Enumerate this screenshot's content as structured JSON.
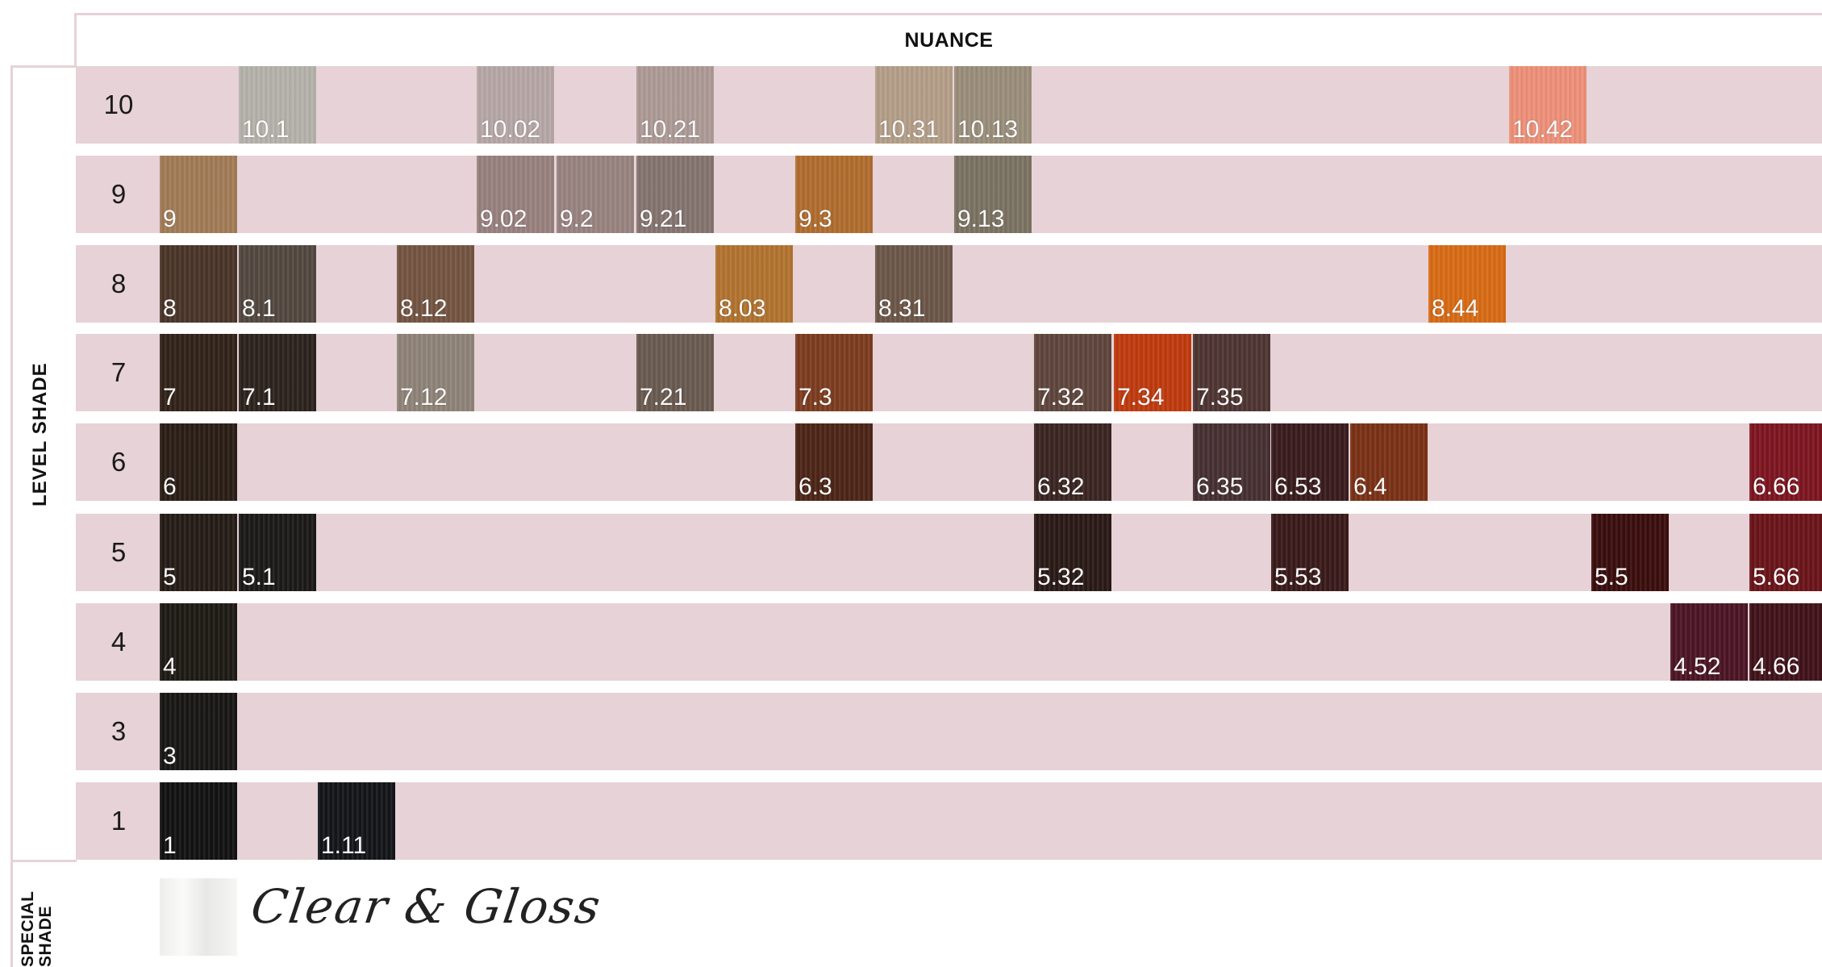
{
  "header": {
    "nuance_label": "NUANCE"
  },
  "axis": {
    "level_shade_label": "LEVEL SHADE",
    "special_shade_label_line1": "SPECIAL",
    "special_shade_label_line2": "SHADE"
  },
  "levels": [
    "10",
    "9",
    "8",
    "7",
    "6",
    "5",
    "4",
    "3",
    "1"
  ],
  "swatches": [
    {
      "label": "10.1",
      "row": 0,
      "col": 1,
      "color": "#b5b2ab"
    },
    {
      "label": "10.02",
      "row": 0,
      "col": 4,
      "color": "#b7a7a7"
    },
    {
      "label": "10.21",
      "row": 0,
      "col": 6,
      "color": "#ad9a97"
    },
    {
      "label": "10.31",
      "row": 0,
      "col": 9,
      "color": "#b49e88"
    },
    {
      "label": "10.13",
      "row": 0,
      "col": 10,
      "color": "#9a8e7b"
    },
    {
      "label": "10.42",
      "row": 0,
      "col": 17,
      "color": "#ee9079"
    },
    {
      "label": "9",
      "row": 1,
      "col": 0,
      "color": "#a27b56"
    },
    {
      "label": "9.02",
      "row": 1,
      "col": 4,
      "color": "#98817f"
    },
    {
      "label": "9.2",
      "row": 1,
      "col": 5,
      "color": "#988380"
    },
    {
      "label": "9.21",
      "row": 1,
      "col": 6,
      "color": "#857470"
    },
    {
      "label": "9.3",
      "row": 1,
      "col": 8,
      "color": "#b06d2e"
    },
    {
      "label": "9.13",
      "row": 1,
      "col": 10,
      "color": "#7b7262"
    },
    {
      "label": "8",
      "row": 2,
      "col": 0,
      "color": "#4a3428"
    },
    {
      "label": "8.1",
      "row": 2,
      "col": 1,
      "color": "#524840"
    },
    {
      "label": "8.12",
      "row": 2,
      "col": 3,
      "color": "#745442"
    },
    {
      "label": "8.03",
      "row": 2,
      "col": 7,
      "color": "#b2732f"
    },
    {
      "label": "8.31",
      "row": 2,
      "col": 9,
      "color": "#6c5749"
    },
    {
      "label": "8.44",
      "row": 2,
      "col": 16,
      "color": "#d86b15"
    },
    {
      "label": "7",
      "row": 3,
      "col": 0,
      "color": "#322219"
    },
    {
      "label": "7.1",
      "row": 3,
      "col": 1,
      "color": "#2c231e"
    },
    {
      "label": "7.12",
      "row": 3,
      "col": 3,
      "color": "#8f8378"
    },
    {
      "label": "7.21",
      "row": 3,
      "col": 6,
      "color": "#6a5a50"
    },
    {
      "label": "7.3",
      "row": 3,
      "col": 8,
      "color": "#7c3c1f"
    },
    {
      "label": "7.32",
      "row": 3,
      "col": 11,
      "color": "#5f463d"
    },
    {
      "label": "7.34",
      "row": 3,
      "col": 12,
      "color": "#c03a0e"
    },
    {
      "label": "7.35",
      "row": 3,
      "col": 13,
      "color": "#4e3532"
    },
    {
      "label": "6",
      "row": 4,
      "col": 0,
      "color": "#2a1e16"
    },
    {
      "label": "6.3",
      "row": 4,
      "col": 8,
      "color": "#4c2517"
    },
    {
      "label": "6.32",
      "row": 4,
      "col": 11,
      "color": "#3a2521"
    },
    {
      "label": "6.35",
      "row": 4,
      "col": 13,
      "color": "#463032"
    },
    {
      "label": "6.53",
      "row": 4,
      "col": 14,
      "color": "#3a1c1d"
    },
    {
      "label": "6.4",
      "row": 4,
      "col": 15,
      "color": "#7a3116"
    },
    {
      "label": "6.66",
      "row": 4,
      "col": 20,
      "color": "#7d1520"
    },
    {
      "label": "5",
      "row": 5,
      "col": 0,
      "color": "#251c16"
    },
    {
      "label": "5.1",
      "row": 5,
      "col": 1,
      "color": "#1c1a18"
    },
    {
      "label": "5.32",
      "row": 5,
      "col": 11,
      "color": "#2a1a17"
    },
    {
      "label": "5.53",
      "row": 5,
      "col": 14,
      "color": "#3a1a1a"
    },
    {
      "label": "5.5",
      "row": 5,
      "col": 18,
      "color": "#3a0e0d"
    },
    {
      "label": "5.66",
      "row": 5,
      "col": 20,
      "color": "#6a1419"
    },
    {
      "label": "4",
      "row": 6,
      "col": 0,
      "color": "#1e1b15"
    },
    {
      "label": "4.52",
      "row": 6,
      "col": 19,
      "color": "#4c1525"
    },
    {
      "label": "4.66",
      "row": 6,
      "col": 20,
      "color": "#41121a"
    },
    {
      "label": "3",
      "row": 7,
      "col": 0,
      "color": "#181716"
    },
    {
      "label": "1",
      "row": 8,
      "col": 0,
      "color": "#121212"
    },
    {
      "label": "1.11",
      "row": 8,
      "col": 2,
      "color": "#141519"
    }
  ],
  "special": {
    "label": "Clear & Gloss"
  },
  "colors": {
    "band": "#e6d2d7",
    "frame_line": "#e4d0d5"
  }
}
